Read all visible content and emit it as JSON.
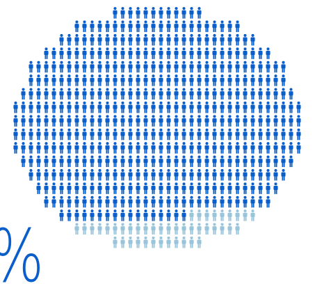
{
  "figure": {
    "type": "pictogram",
    "icon": "person-icon",
    "percent_symbol": "%",
    "colors": {
      "primary": "#0a5ec9",
      "secondary": "#99c4da"
    },
    "rows": [
      {
        "primary": 12,
        "secondary": 0
      },
      {
        "primary": 22,
        "secondary": 0
      },
      {
        "primary": 26,
        "secondary": 0
      },
      {
        "primary": 30,
        "secondary": 0
      },
      {
        "primary": 34,
        "secondary": 0
      },
      {
        "primary": 34,
        "secondary": 0
      },
      {
        "primary": 36,
        "secondary": 0
      },
      {
        "primary": 38,
        "secondary": 0
      },
      {
        "primary": 38,
        "secondary": 0
      },
      {
        "primary": 38,
        "secondary": 0
      },
      {
        "primary": 38,
        "secondary": 0
      },
      {
        "primary": 36,
        "secondary": 0
      },
      {
        "primary": 34,
        "secondary": 0
      },
      {
        "primary": 32,
        "secondary": 0
      },
      {
        "primary": 30,
        "secondary": 0
      },
      {
        "primary": 17,
        "secondary": 9
      },
      {
        "primary": 0,
        "secondary": 22
      },
      {
        "primary": 0,
        "secondary": 12
      }
    ]
  }
}
